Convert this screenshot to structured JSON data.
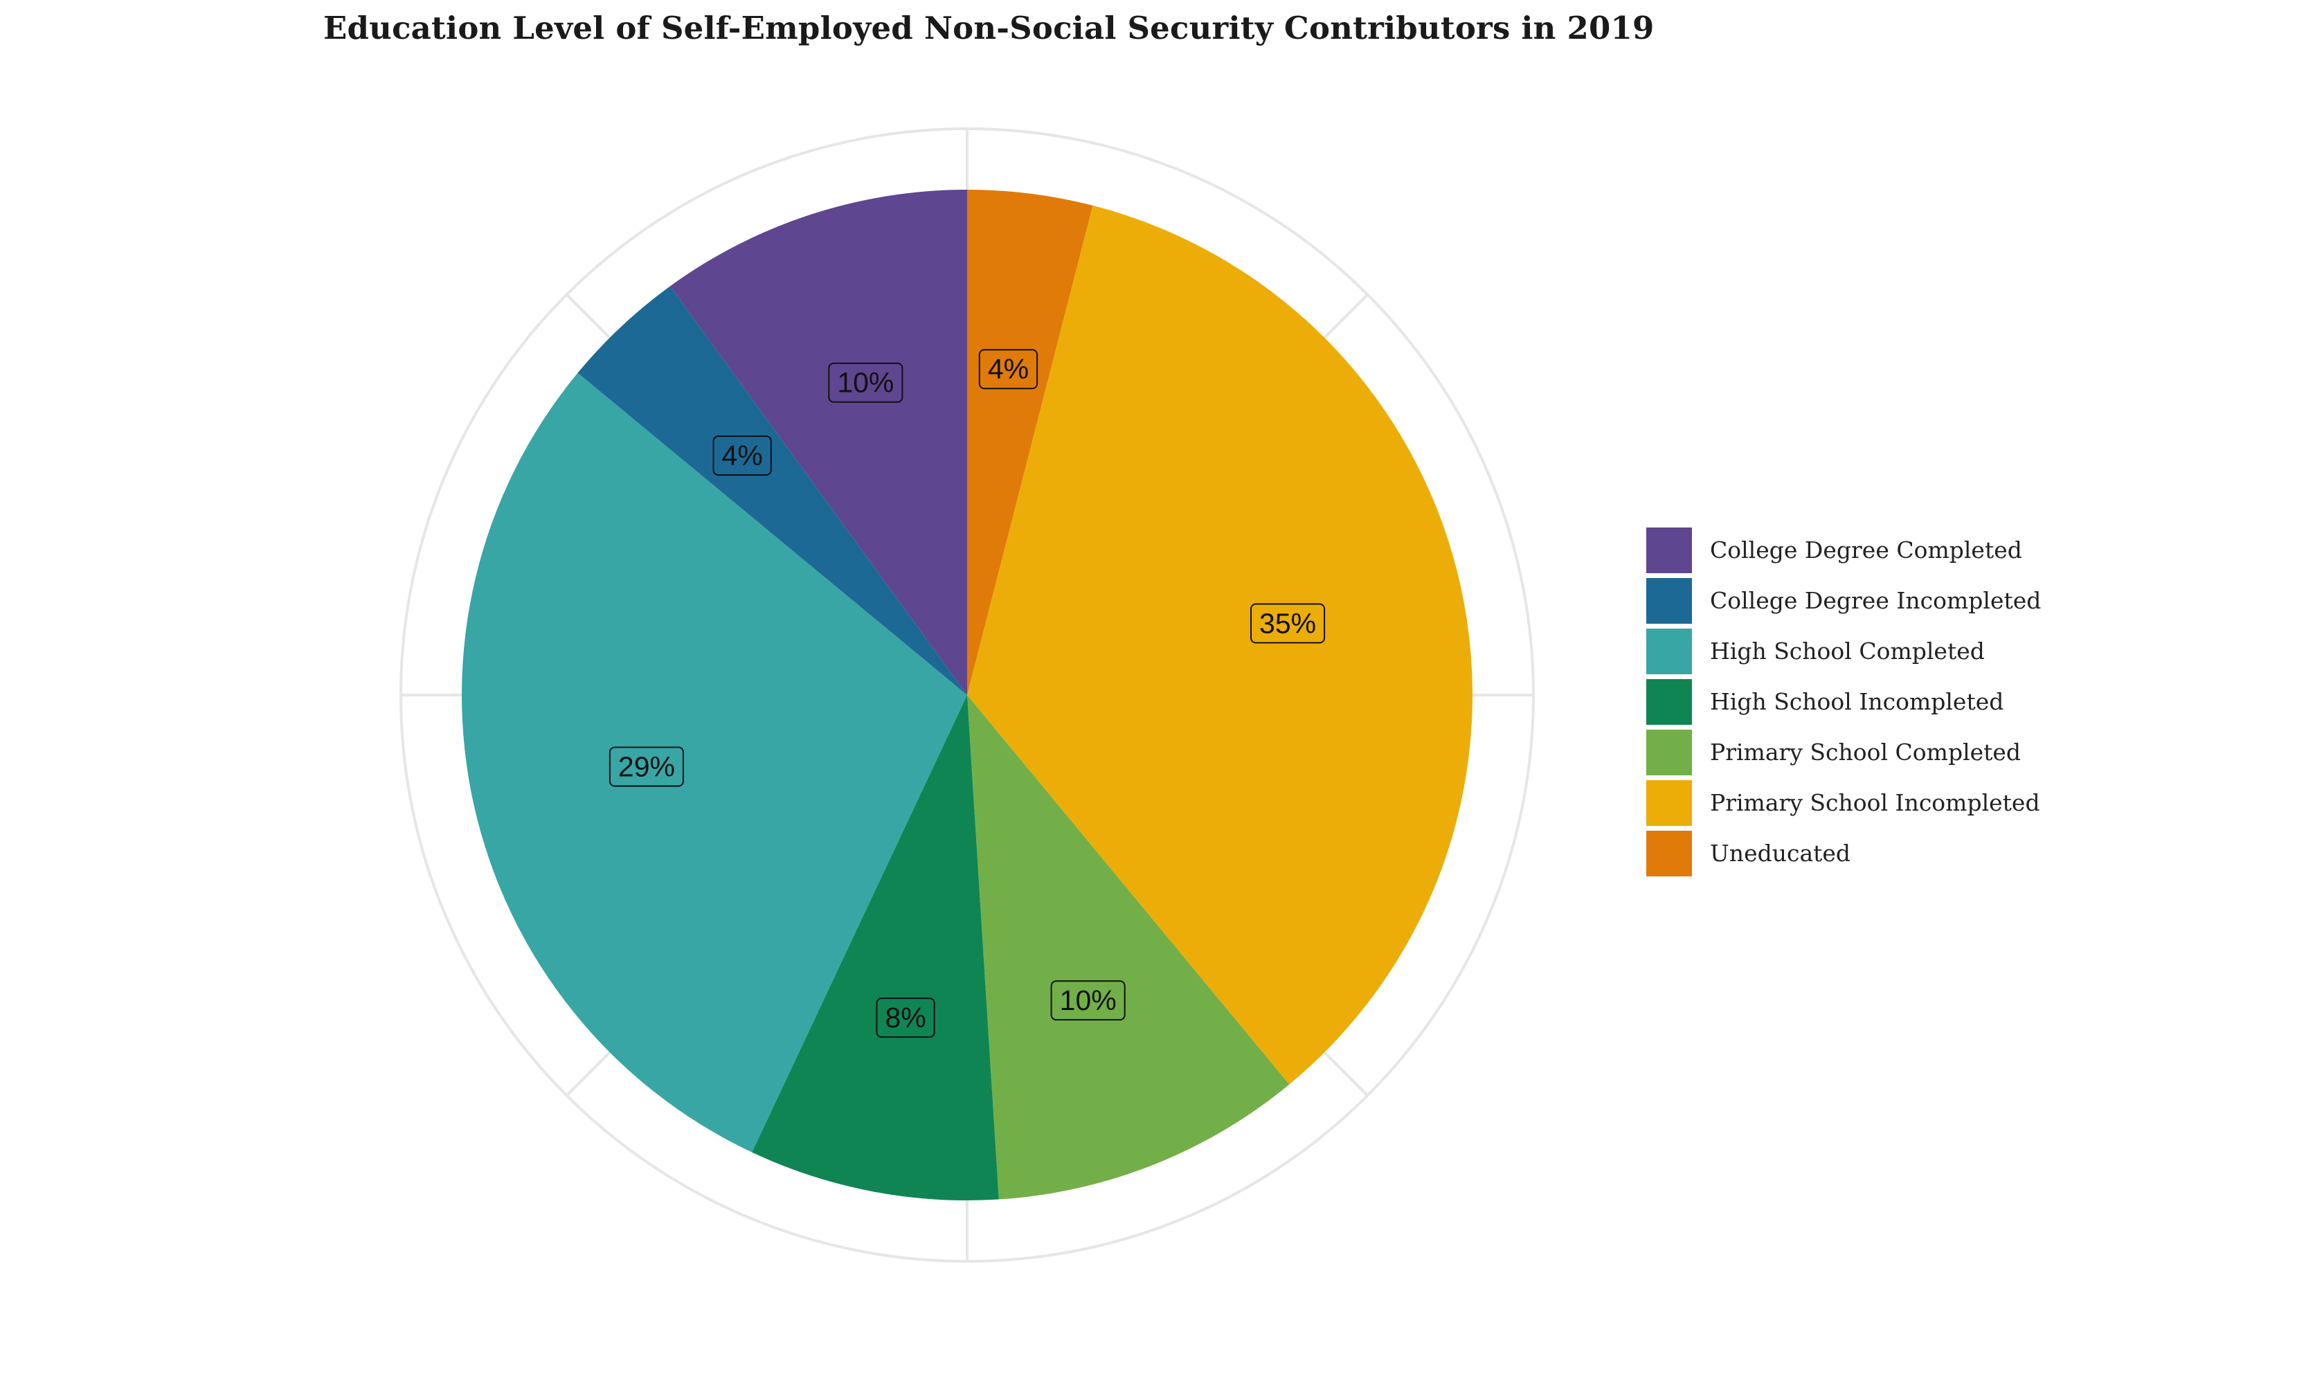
{
  "chart_data": {
    "type": "pie",
    "title": "Education Level of Self-Employed Non-Social Security Contributors in 2019",
    "legend_position": "right",
    "grid": true,
    "slices": [
      {
        "name": "Uneducated",
        "value": 4,
        "label": "4%",
        "color": "#E07B0A"
      },
      {
        "name": "Primary School Incompleted",
        "value": 35,
        "label": "35%",
        "color": "#ECAD08"
      },
      {
        "name": "Primary School Completed",
        "value": 10,
        "label": "10%",
        "color": "#73AF48"
      },
      {
        "name": "High School Incompleted",
        "value": 8,
        "label": "8%",
        "color": "#0F8554"
      },
      {
        "name": "High School Completed",
        "value": 29,
        "label": "29%",
        "color": "#38A6A5"
      },
      {
        "name": "College Degree Incompleted",
        "value": 4,
        "label": "4%",
        "color": "#1D6996"
      },
      {
        "name": "College Degree Completed",
        "value": 10,
        "label": "10%",
        "color": "#5F4690"
      }
    ],
    "legend": [
      {
        "name": "College Degree Completed",
        "color": "#5F4690"
      },
      {
        "name": "College Degree Incompleted",
        "color": "#1D6996"
      },
      {
        "name": "High School Completed",
        "color": "#38A6A5"
      },
      {
        "name": "High School Incompleted",
        "color": "#0F8554"
      },
      {
        "name": "Primary School Completed",
        "color": "#73AF48"
      },
      {
        "name": "Primary School Incompleted",
        "color": "#ECAD08"
      },
      {
        "name": "Uneducated",
        "color": "#E07B0A"
      }
    ]
  }
}
